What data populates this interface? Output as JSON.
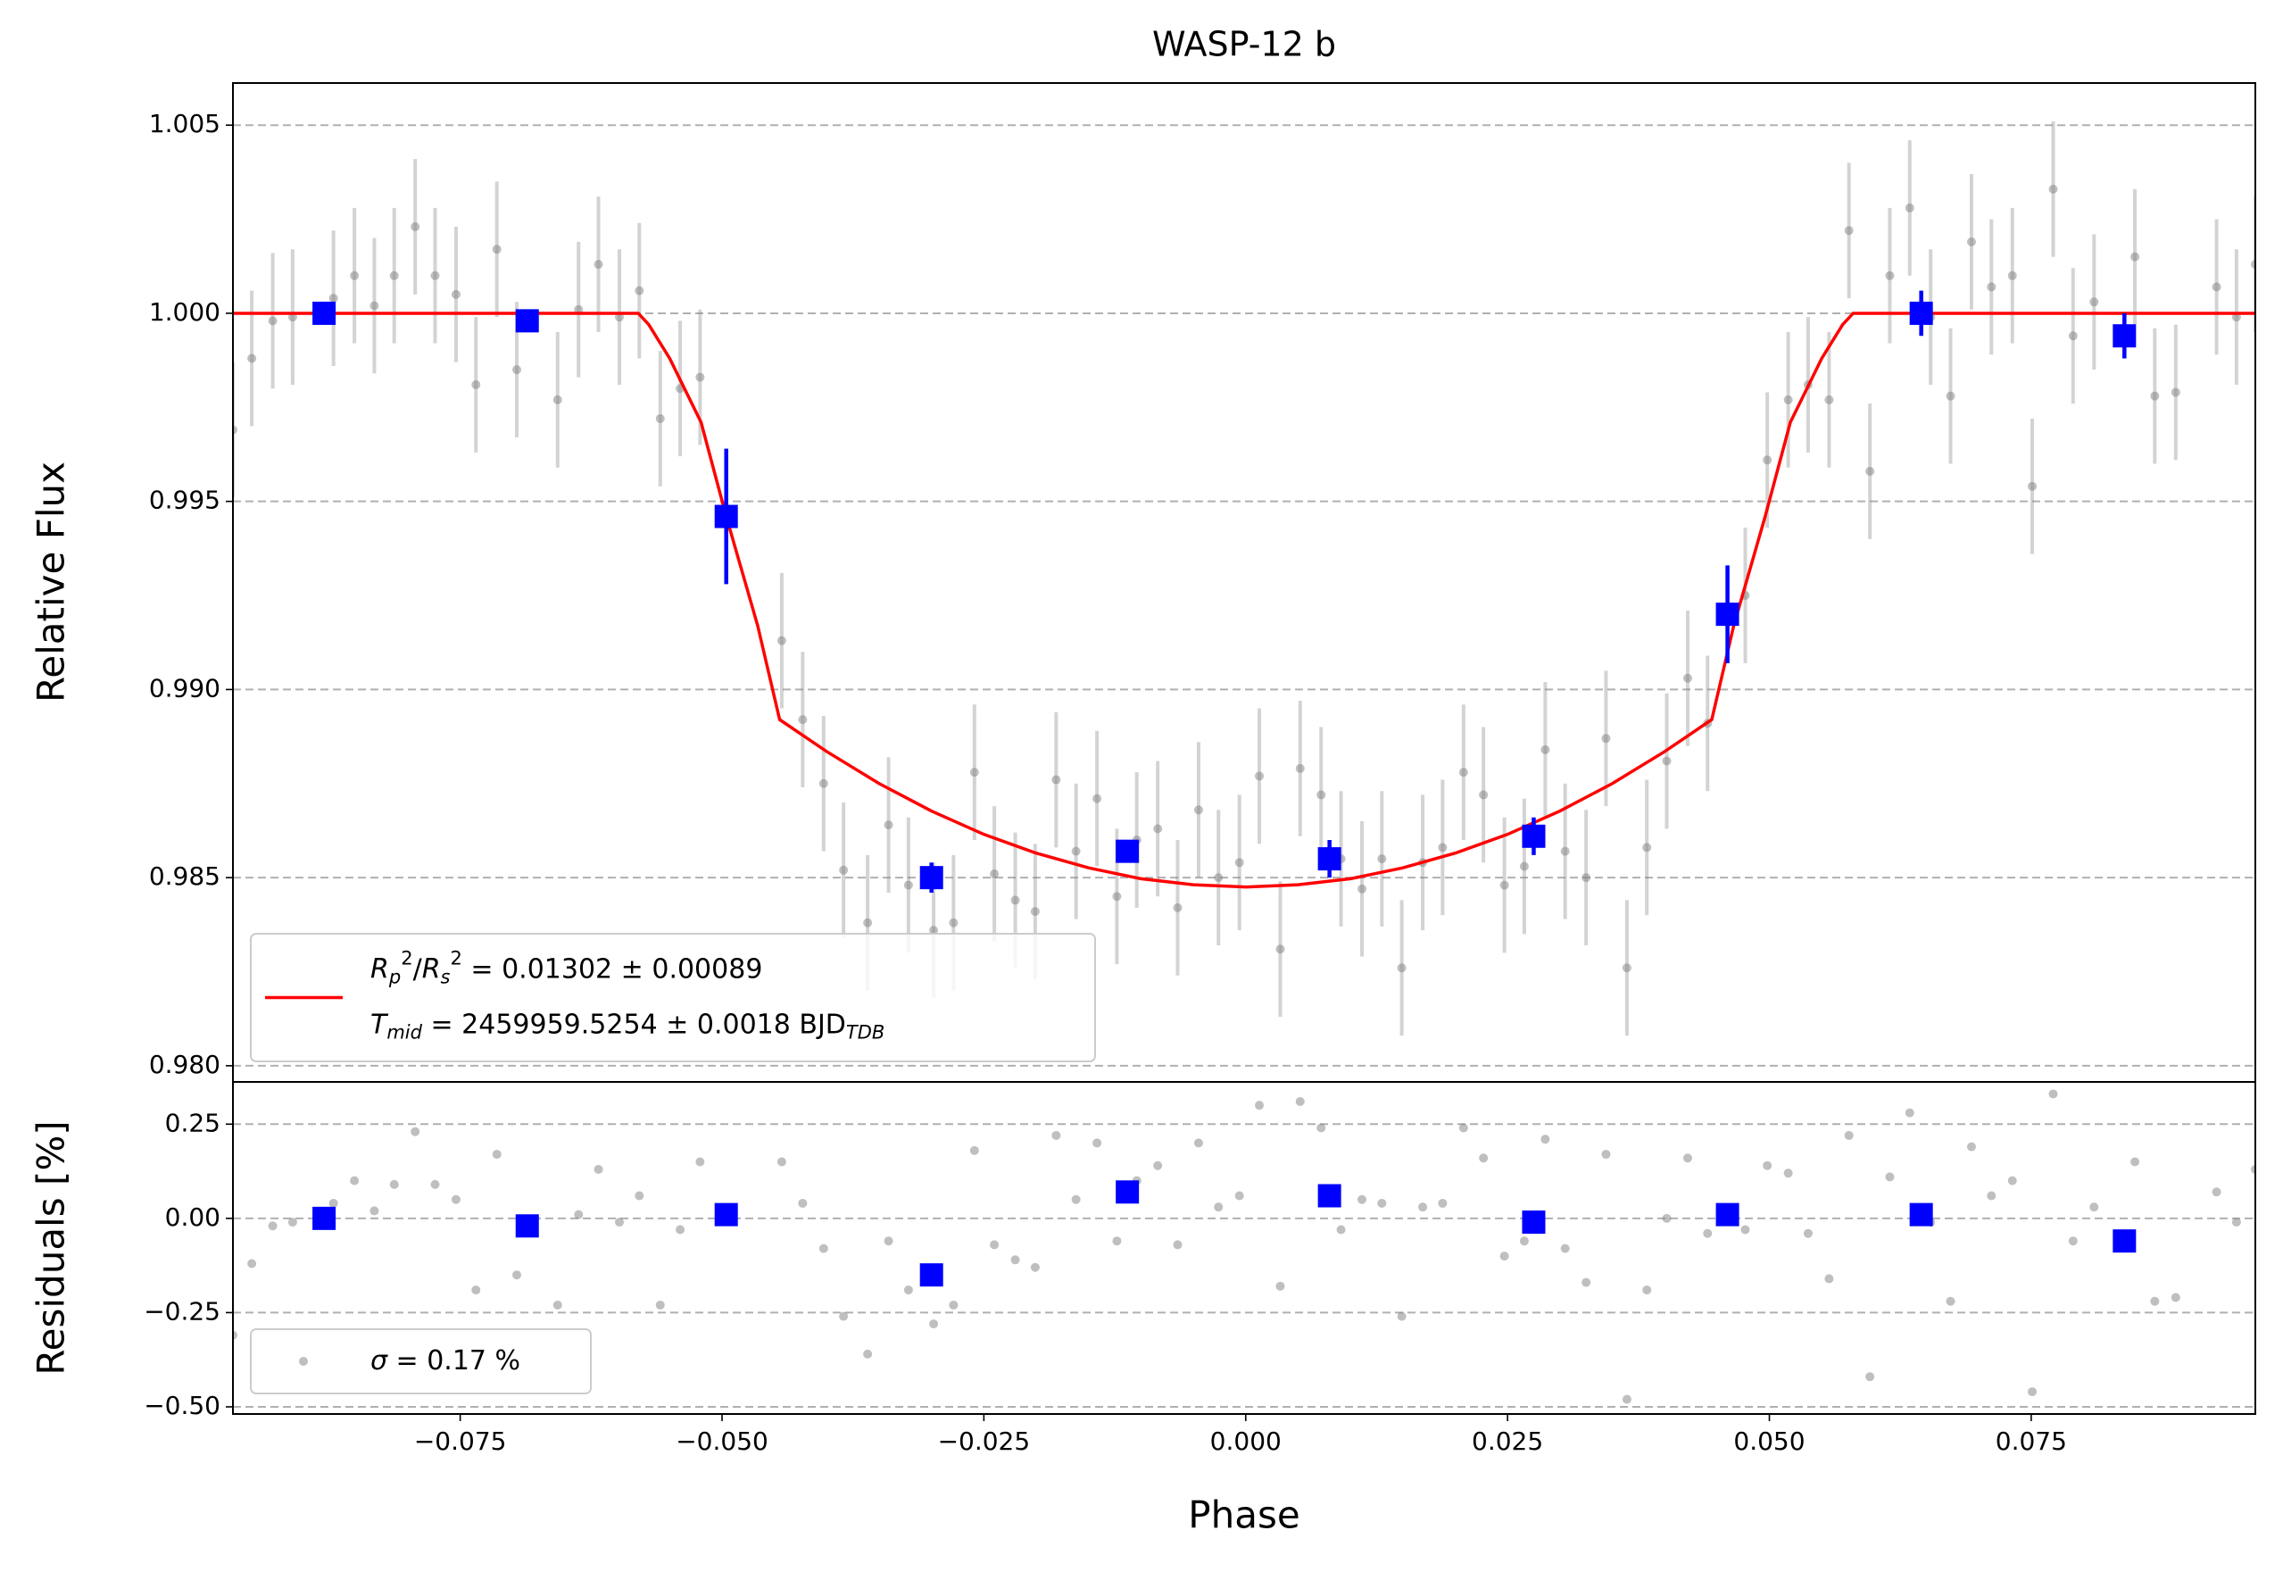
{
  "chart_data": [
    {
      "type": "errorbar",
      "title": "WASP-12 b",
      "ylabel": "Relative Flux",
      "xlim": [
        -0.0967,
        0.0964
      ],
      "ylim": [
        0.97957,
        1.00612
      ],
      "yticks": [
        {
          "value": 0.98,
          "label": "0.980"
        },
        {
          "value": 0.985,
          "label": "0.985"
        },
        {
          "value": 0.99,
          "label": "0.990"
        },
        {
          "value": 0.995,
          "label": "0.995"
        },
        {
          "value": 1.0,
          "label": "1.000"
        },
        {
          "value": 1.005,
          "label": "1.005"
        }
      ],
      "grid": true,
      "legend": "lower left",
      "series": [
        {
          "kind": "points",
          "marker": "circle",
          "color": "#808080",
          "x": [
            -0.0967,
            -0.0949,
            -0.0929,
            -0.091,
            -0.0871,
            -0.0851,
            -0.0832,
            -0.0813,
            -0.0793,
            -0.0774,
            -0.0754,
            -0.0735,
            -0.0715,
            -0.0696,
            -0.0657,
            -0.0637,
            -0.0618,
            -0.0598,
            -0.0579,
            -0.0559,
            -0.054,
            -0.0521,
            -0.0443,
            -0.0423,
            -0.0403,
            -0.0384,
            -0.0361,
            -0.0341,
            -0.0322,
            -0.0298,
            -0.0279,
            -0.0259,
            -0.024,
            -0.022,
            -0.0201,
            -0.0181,
            -0.0162,
            -0.0142,
            -0.0123,
            -0.0104,
            -0.0084,
            -0.0065,
            -0.0045,
            -0.0026,
            -0.0006,
            0.0013,
            0.0033,
            0.0052,
            0.0072,
            0.0091,
            0.0111,
            0.013,
            0.0149,
            0.0169,
            0.0188,
            0.0208,
            0.0227,
            0.0247,
            0.0266,
            0.0286,
            0.0305,
            0.0325,
            0.0344,
            0.0364,
            0.0383,
            0.0402,
            0.0422,
            0.0441,
            0.0477,
            0.0498,
            0.0518,
            0.0537,
            0.0557,
            0.0576,
            0.0596,
            0.0615,
            0.0634,
            0.0654,
            0.0673,
            0.0693,
            0.0712,
            0.0732,
            0.0751,
            0.0771,
            0.079,
            0.081,
            0.0849,
            0.0868,
            0.0888,
            0.0927,
            0.0946,
            0.0964
          ],
          "values": [
            0.9969,
            0.9988,
            0.9998,
            0.9999,
            1.0004,
            1.001,
            1.0002,
            1.001,
            1.0023,
            1.001,
            1.0005,
            0.9981,
            1.0017,
            0.9985,
            0.9977,
            1.0001,
            1.0013,
            0.9999,
            1.0006,
            0.9972,
            0.998,
            0.9983,
            0.9913,
            0.9892,
            0.9875,
            0.9852,
            0.9838,
            0.9864,
            0.9848,
            0.9836,
            0.9838,
            0.9878,
            0.9851,
            0.9844,
            0.9841,
            0.9876,
            0.9857,
            0.9871,
            0.9845,
            0.986,
            0.9863,
            0.9842,
            0.9868,
            0.985,
            0.9854,
            0.9877,
            0.9831,
            0.9879,
            0.9872,
            0.9855,
            0.9847,
            0.9855,
            0.9826,
            0.9854,
            0.9858,
            0.9878,
            0.9872,
            0.9848,
            0.9853,
            0.9884,
            0.9857,
            0.985,
            0.9887,
            0.9826,
            0.9858,
            0.9881,
            0.9903,
            0.9891,
            0.9925,
            0.9961,
            0.9977,
            0.9981,
            0.9977,
            1.0022,
            0.9958,
            1.001,
            1.0028,
            0.9999,
            0.9978,
            1.0019,
            1.0007,
            1.001,
            0.9954,
            1.0033,
            0.9994,
            1.0003,
            1.0015,
            0.9978,
            0.9979,
            1.0007,
            0.9999,
            1.0013
          ],
          "errors": [
            0.0018,
            0.0018,
            0.0018,
            0.0018,
            0.0018,
            0.0018,
            0.0018,
            0.0018,
            0.0018,
            0.0018,
            0.0018,
            0.0018,
            0.0018,
            0.0018,
            0.0018,
            0.0018,
            0.0018,
            0.0018,
            0.0018,
            0.0018,
            0.0018,
            0.0018,
            0.0018,
            0.0018,
            0.0018,
            0.0018,
            0.0018,
            0.0018,
            0.0018,
            0.0018,
            0.0018,
            0.0018,
            0.0018,
            0.0018,
            0.0018,
            0.0018,
            0.0018,
            0.0018,
            0.0018,
            0.0018,
            0.0018,
            0.0018,
            0.0018,
            0.0018,
            0.0018,
            0.0018,
            0.0018,
            0.0018,
            0.0018,
            0.0018,
            0.0018,
            0.0018,
            0.0018,
            0.0018,
            0.0018,
            0.0018,
            0.0018,
            0.0018,
            0.0018,
            0.0018,
            0.0018,
            0.0018,
            0.0018,
            0.0018,
            0.0018,
            0.0018,
            0.0018,
            0.0018,
            0.0018,
            0.0018,
            0.0018,
            0.0018,
            0.0018,
            0.0018,
            0.0018,
            0.0018,
            0.0018,
            0.0018,
            0.0018,
            0.0018,
            0.0018,
            0.0018,
            0.0018,
            0.0018,
            0.0018,
            0.0018,
            0.0018,
            0.0018,
            0.0018,
            0.0018,
            0.0018,
            0.0018
          ]
        },
        {
          "kind": "points",
          "marker": "square",
          "color": "#0000ff",
          "x": [
            -0.088,
            -0.0686,
            -0.0496,
            -0.03,
            -0.0113,
            0.008,
            0.0275,
            0.046,
            0.0645,
            0.0839
          ],
          "values": [
            1.0,
            0.9998,
            0.9946,
            0.985,
            0.9857,
            0.9855,
            0.9861,
            0.992,
            1.0,
            0.9994
          ],
          "errors": [
            0.0003,
            0.0002,
            0.0018,
            0.0004,
            0.0003,
            0.0005,
            0.0005,
            0.0013,
            0.0006,
            0.0006
          ]
        },
        {
          "kind": "line",
          "color": "#ff0000",
          "name": [
            [
              {
                "text": "R",
                "italic": true
              },
              {
                "text": "p",
                "italic": true,
                "script": "sub"
              },
              {
                "text": "2",
                "script": "sup"
              },
              {
                "text": "/"
              },
              {
                "text": "R",
                "italic": true
              },
              {
                "text": "s",
                "italic": true,
                "script": "sub"
              },
              {
                "text": "2",
                "script": "sup"
              },
              {
                "text": " = 0.01302 ± 0.00089"
              }
            ],
            [
              {
                "text": "T",
                "italic": true
              },
              {
                "text": "mid",
                "italic": true,
                "script": "sub"
              },
              {
                "text": " = 2459959.5254 ± 0.0018 BJD"
              },
              {
                "text": "TDB",
                "italic": true,
                "script": "sub"
              }
            ]
          ],
          "x": [
            -0.0967,
            -0.058,
            -0.057,
            -0.055,
            -0.052,
            -0.0496,
            -0.0466,
            -0.0445,
            -0.04,
            -0.035,
            -0.03,
            -0.025,
            -0.02,
            -0.015,
            -0.01,
            -0.005,
            0,
            0.005,
            0.01,
            0.015,
            0.02,
            0.025,
            0.03,
            0.035,
            0.04,
            0.0445,
            0.0466,
            0.0496,
            0.052,
            0.055,
            0.057,
            0.058,
            0.0964
          ],
          "values": [
            1.0,
            1.0,
            0.9997,
            0.9988,
            0.9971,
            0.9946,
            0.9917,
            0.9892,
            0.98835,
            0.9875,
            0.98677,
            0.98615,
            0.98565,
            0.98526,
            0.98497,
            0.98481,
            0.98475,
            0.98481,
            0.98497,
            0.98526,
            0.98565,
            0.98615,
            0.98677,
            0.9875,
            0.98835,
            0.9892,
            0.9917,
            0.9946,
            0.9971,
            0.9988,
            0.9997,
            1.0,
            1.0
          ]
        }
      ]
    },
    {
      "type": "scatter",
      "ylabel": "Residuals [%]",
      "xlabel": "Phase",
      "xlim": [
        -0.0967,
        0.0964
      ],
      "ylim": [
        -0.519,
        0.362
      ],
      "xticks": [
        {
          "value": -0.075,
          "label": "−0.075"
        },
        {
          "value": -0.05,
          "label": "−0.050"
        },
        {
          "value": -0.025,
          "label": "−0.025"
        },
        {
          "value": 0,
          "label": "0.000"
        },
        {
          "value": 0.025,
          "label": "0.025"
        },
        {
          "value": 0.05,
          "label": "0.050"
        },
        {
          "value": 0.075,
          "label": "0.075"
        }
      ],
      "yticks": [
        {
          "value": -0.5,
          "label": "−0.50"
        },
        {
          "value": -0.25,
          "label": "−0.25"
        },
        {
          "value": 0,
          "label": "0.00"
        },
        {
          "value": 0.25,
          "label": "0.25"
        }
      ],
      "grid": true,
      "legend": "lower left",
      "series": [
        {
          "kind": "points",
          "marker": "circle",
          "color": "#808080",
          "name": [
            [
              {
                "text": "σ",
                "italic": true
              },
              {
                "text": " = 0.17 %"
              }
            ]
          ],
          "x": [
            -0.0967,
            -0.0949,
            -0.0929,
            -0.091,
            -0.0871,
            -0.0851,
            -0.0832,
            -0.0813,
            -0.0793,
            -0.0774,
            -0.0754,
            -0.0735,
            -0.0715,
            -0.0696,
            -0.0657,
            -0.0637,
            -0.0618,
            -0.0598,
            -0.0579,
            -0.0559,
            -0.054,
            -0.0521,
            -0.0443,
            -0.0423,
            -0.0403,
            -0.0384,
            -0.0361,
            -0.0341,
            -0.0322,
            -0.0298,
            -0.0279,
            -0.0259,
            -0.024,
            -0.022,
            -0.0201,
            -0.0181,
            -0.0162,
            -0.0142,
            -0.0123,
            -0.0104,
            -0.0084,
            -0.0065,
            -0.0045,
            -0.0026,
            -0.0006,
            0.0013,
            0.0033,
            0.0052,
            0.0072,
            0.0091,
            0.0111,
            0.013,
            0.0149,
            0.0169,
            0.0188,
            0.0208,
            0.0227,
            0.0247,
            0.0266,
            0.0286,
            0.0305,
            0.0325,
            0.0344,
            0.0364,
            0.0383,
            0.0402,
            0.0422,
            0.0441,
            0.0477,
            0.0498,
            0.0518,
            0.0537,
            0.0557,
            0.0576,
            0.0596,
            0.0615,
            0.0634,
            0.0654,
            0.0673,
            0.0693,
            0.0712,
            0.0732,
            0.0751,
            0.0771,
            0.079,
            0.081,
            0.0849,
            0.0868,
            0.0888,
            0.0927,
            0.0946,
            0.0964
          ],
          "values": [
            -0.31,
            -0.12,
            -0.02,
            -0.01,
            0.04,
            0.1,
            0.02,
            0.09,
            0.23,
            0.09,
            0.05,
            -0.19,
            0.17,
            -0.15,
            -0.23,
            0.01,
            0.13,
            -0.01,
            0.06,
            -0.23,
            -0.03,
            0.15,
            0.15,
            0.04,
            -0.08,
            -0.26,
            -0.36,
            -0.06,
            -0.19,
            -0.28,
            -0.23,
            0.18,
            -0.07,
            -0.11,
            -0.13,
            0.22,
            0.05,
            0.2,
            -0.06,
            0.1,
            0.14,
            -0.07,
            0.2,
            0.03,
            0.06,
            0.3,
            -0.18,
            0.31,
            0.24,
            -0.03,
            0.05,
            0.04,
            -0.26,
            0.03,
            0.04,
            0.24,
            0.16,
            -0.1,
            -0.06,
            0.21,
            -0.08,
            -0.17,
            0.17,
            -0.48,
            -0.19,
            0.0,
            0.16,
            -0.04,
            -0.03,
            0.14,
            0.12,
            -0.04,
            -0.16,
            0.22,
            -0.42,
            0.11,
            0.28,
            -0.01,
            -0.22,
            0.19,
            0.06,
            0.1,
            -0.46,
            0.33,
            -0.06,
            0.03,
            0.15,
            -0.22,
            -0.21,
            0.07,
            -0.01,
            0.13
          ]
        },
        {
          "kind": "points",
          "marker": "square",
          "color": "#0000ff",
          "x": [
            -0.088,
            -0.0686,
            -0.0496,
            -0.03,
            -0.0113,
            0.008,
            0.0275,
            0.046,
            0.0645,
            0.0839
          ],
          "values": [
            0.0,
            -0.02,
            0.01,
            -0.15,
            0.07,
            0.06,
            -0.01,
            0.01,
            0.01,
            -0.06
          ]
        }
      ]
    }
  ]
}
